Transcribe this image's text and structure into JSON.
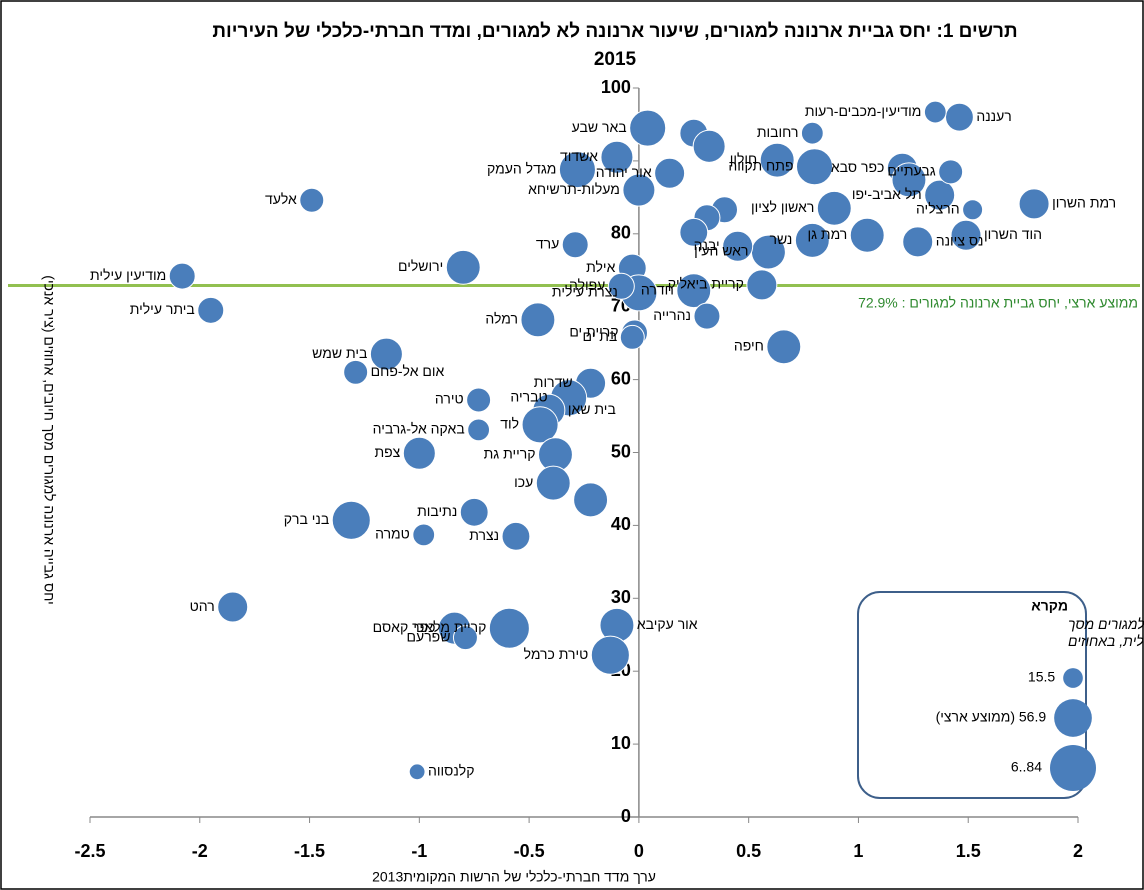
{
  "chart_data": {
    "type": "bubble",
    "title": "תרשים 1:  יחס גביית ארנונה למגורים, שיעור ארנונה לא למגורים, ומדד חברתי-כלכלי של העיריות\n2015",
    "x_label": "ערך מדד חברתי-כלכלי של הרשות המקומית2013",
    "y_label": "יחס גבייה ארנונה למגורים מסך חיובים, אחוזים  (ציר אנכי)",
    "xlim": [
      -2.5,
      2
    ],
    "xticks": [
      -2.5,
      -2,
      -1.5,
      -1,
      -0.5,
      0,
      0.5,
      1,
      1.5,
      2
    ],
    "ylim": [
      0,
      100
    ],
    "yticks": [
      0,
      10,
      20,
      30,
      40,
      50,
      60,
      70,
      80,
      90,
      100
    ],
    "color": "#4a7ebb",
    "labels": [
      "באר שבע",
      "אשדוד",
      "מגדל העמק",
      "אור יהודה",
      "מעלות-תרשיחא",
      null,
      null,
      "רחובות",
      "חולון",
      "פתח תקווה",
      "ראשון לציון",
      "כפר סבא",
      null,
      "תל אביב-יפו",
      "גבעתיים",
      "הרצליה",
      "רמת השרון",
      "רעננה",
      "מודיעין-מכבים-רעות",
      "רמת גן",
      "הוד השרון",
      "נס ציונה",
      "נשר",
      "ראש העין",
      "יבנה",
      null,
      null,
      null,
      "קריית ביאליק",
      "חדרה",
      "אילת",
      "נצרת עילית",
      "ערד",
      "ירושלים",
      "אלעד",
      "מודיעין עילית",
      "ביתר עילית",
      "רמלה",
      "קריית ים",
      "בת ים",
      "עפולה",
      "נהרייה",
      "חיפה",
      "בית שמש",
      "אום אל-פחם",
      "שדרות",
      "טבריה",
      "בית שאן",
      "לוד",
      "טירה",
      "באקה אל-גרביה",
      "קריית גת",
      "צפת",
      "עכו",
      null,
      "נתיבות",
      "נצרת",
      "טמרה",
      "בני ברק",
      "רהט",
      "כפר קאסם",
      "שפרעם",
      "קריית מלאכי",
      "אור עקיבא",
      "טירת כרמל",
      "קלנסווה"
    ],
    "x": [
      0.04,
      -0.1,
      -0.28,
      0.14,
      0.0,
      0.25,
      0.32,
      0.79,
      0.63,
      0.8,
      0.89,
      1.2,
      1.23,
      1.37,
      1.42,
      1.52,
      1.8,
      1.46,
      1.35,
      1.04,
      1.49,
      1.27,
      0.79,
      0.59,
      0.45,
      0.39,
      0.31,
      0.25,
      0.56,
      0.25,
      -0.03,
      0.0,
      -0.29,
      -0.8,
      -1.49,
      -2.08,
      -1.95,
      -0.46,
      -0.02,
      -0.03,
      -0.08,
      0.31,
      0.66,
      -1.15,
      -1.29,
      -0.22,
      -0.32,
      -0.41,
      -0.45,
      -0.73,
      -0.73,
      -0.38,
      -1.0,
      -0.39,
      -0.22,
      -0.75,
      -0.56,
      -0.98,
      -1.31,
      -1.85,
      -0.84,
      -0.79,
      -0.59,
      -0.1,
      -0.13,
      -1.01
    ],
    "y": [
      94.5,
      90.5,
      88.8,
      88.3,
      86.0,
      93.8,
      92.0,
      93.8,
      90.1,
      89.2,
      83.5,
      89.0,
      87.4,
      85.3,
      88.5,
      83.3,
      84.1,
      96.0,
      96.7,
      79.8,
      79.8,
      78.9,
      79.1,
      77.5,
      78.3,
      83.3,
      82.2,
      80.2,
      73.0,
      72.2,
      75.3,
      71.9,
      78.5,
      75.4,
      84.6,
      74.2,
      69.5,
      68.2,
      66.4,
      65.8,
      72.8,
      68.7,
      64.5,
      63.5,
      61.0,
      59.5,
      57.5,
      55.8,
      53.8,
      57.2,
      53.1,
      49.7,
      49.9,
      45.8,
      43.5,
      41.8,
      38.5,
      38.7,
      40.7,
      28.8,
      25.9,
      24.6,
      25.9,
      26.3,
      22.2,
      6.2
    ],
    "sizes": [
      52,
      41,
      52,
      36,
      41,
      31,
      41,
      19,
      46,
      52,
      46,
      36,
      46,
      36,
      23,
      16,
      36,
      31,
      19,
      46,
      36,
      36,
      46,
      46,
      36,
      27,
      27,
      31,
      36,
      46,
      31,
      52,
      27,
      46,
      23,
      27,
      27,
      46,
      27,
      23,
      27,
      27,
      46,
      41,
      23,
      36,
      52,
      41,
      52,
      23,
      19,
      46,
      41,
      46,
      46,
      31,
      31,
      19,
      58,
      36,
      41,
      23,
      64,
      46,
      58,
      10
    ],
    "reference_line": {
      "value": 72.9,
      "label": "ממוצע ארצי, יחס גביית ארנונה למגורים : 72.9%",
      "color": "#92c050"
    },
    "legend": {
      "title": "מקרא",
      "subtitle": "שיעור ארנונה לא למגורים מסך ארנונה כללית, באחוזים",
      "sizes": [
        15.5,
        56.9,
        84.6
      ],
      "value_labels": [
        "15.5",
        "56.9 (ממוצע ארצי)",
        "84..6"
      ]
    }
  }
}
